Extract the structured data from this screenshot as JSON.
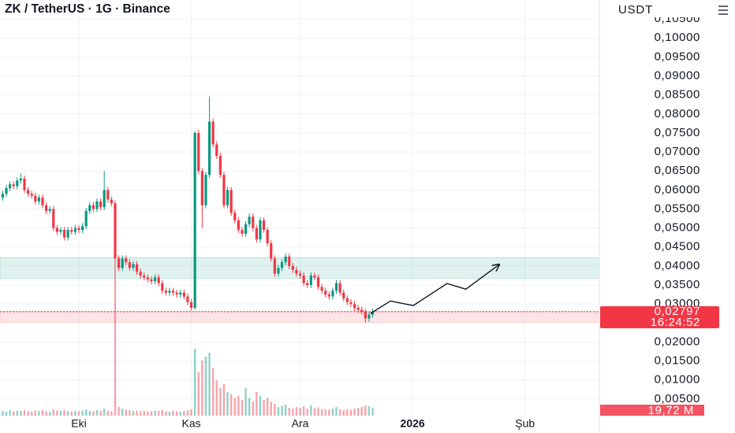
{
  "chart_data": {
    "type": "candlestick",
    "title": "ZK / TetherUS · 1G · Binance",
    "y_axis_label": "USDT",
    "up_color": "#089981",
    "down_color": "#f23645",
    "grid": true,
    "ylim": [
      0,
      0.11
    ],
    "yticks": [
      {
        "value": 0.005,
        "label": "0,00500"
      },
      {
        "value": 0.01,
        "label": "0,01000"
      },
      {
        "value": 0.015,
        "label": "0,01500"
      },
      {
        "value": 0.02,
        "label": "0,02000"
      },
      {
        "value": 0.03,
        "label": "0,03000"
      },
      {
        "value": 0.035,
        "label": "0,03500"
      },
      {
        "value": 0.04,
        "label": "0,04000"
      },
      {
        "value": 0.045,
        "label": "0,04500"
      },
      {
        "value": 0.05,
        "label": "0,05000"
      },
      {
        "value": 0.055,
        "label": "0,05500"
      },
      {
        "value": 0.06,
        "label": "0,06000"
      },
      {
        "value": 0.065,
        "label": "0,06500"
      },
      {
        "value": 0.07,
        "label": "0,07000"
      },
      {
        "value": 0.075,
        "label": "0,07500"
      },
      {
        "value": 0.08,
        "label": "0,08000"
      },
      {
        "value": 0.085,
        "label": "0,08500"
      },
      {
        "value": 0.09,
        "label": "0,09000"
      },
      {
        "value": 0.095,
        "label": "0,09500"
      },
      {
        "value": 0.1,
        "label": "0,10000"
      },
      {
        "value": 0.105,
        "label": "0,10500"
      }
    ],
    "xlim": [
      -0.74,
      164.5
    ],
    "xticks": [
      {
        "value": 21,
        "label": "Eki"
      },
      {
        "value": 52,
        "label": "Kas"
      },
      {
        "value": 82,
        "label": "Ara"
      },
      {
        "value": 113,
        "label": "2026",
        "bold": true
      },
      {
        "value": 144,
        "label": "Şub"
      }
    ],
    "open": [
      0.058,
      0.059,
      0.0605,
      0.0615,
      0.061,
      0.0625,
      0.063,
      0.06,
      0.059,
      0.0585,
      0.057,
      0.058,
      0.056,
      0.0545,
      0.055,
      0.05,
      0.049,
      0.0495,
      0.0475,
      0.0495,
      0.049,
      0.05,
      0.0495,
      0.0505,
      0.0545,
      0.056,
      0.055,
      0.057,
      0.0555,
      0.06,
      0.0575,
      0.0565,
      0.042,
      0.0395,
      0.042,
      0.041,
      0.0395,
      0.0405,
      0.0385,
      0.0375,
      0.037,
      0.0365,
      0.036,
      0.037,
      0.0355,
      0.0335,
      0.033,
      0.0335,
      0.033,
      0.0325,
      0.033,
      0.032,
      0.0305,
      0.029,
      0.075,
      0.065,
      0.056,
      0.064,
      0.078,
      0.072,
      0.069,
      0.064,
      0.056,
      0.06,
      0.054,
      0.052,
      0.0495,
      0.0485,
      0.051,
      0.053,
      0.05,
      0.047,
      0.052,
      0.0495,
      0.046,
      0.042,
      0.038,
      0.0395,
      0.041,
      0.0425,
      0.04,
      0.039,
      0.038,
      0.0375,
      0.0355,
      0.035,
      0.0375,
      0.037,
      0.0345,
      0.0335,
      0.0325,
      0.032,
      0.0335,
      0.0355,
      0.033,
      0.0315,
      0.0305,
      0.03,
      0.029,
      0.0285,
      0.028,
      0.0262,
      0.0272
    ],
    "high": [
      0.0598,
      0.0613,
      0.0623,
      0.0623,
      0.0633,
      0.0644,
      0.0638,
      0.0608,
      0.0598,
      0.0593,
      0.0588,
      0.0588,
      0.0568,
      0.0558,
      0.0558,
      0.0508,
      0.0503,
      0.0503,
      0.0503,
      0.0503,
      0.0508,
      0.0508,
      0.0513,
      0.0553,
      0.0568,
      0.0568,
      0.0578,
      0.0578,
      0.065,
      0.0608,
      0.0583,
      0.0573,
      0.0428,
      0.0428,
      0.0428,
      0.0418,
      0.0413,
      0.0413,
      0.0393,
      0.0383,
      0.0378,
      0.0373,
      0.0378,
      0.0378,
      0.0363,
      0.0343,
      0.0343,
      0.0343,
      0.0338,
      0.0338,
      0.0338,
      0.0328,
      0.0313,
      0.0755,
      0.0758,
      0.0658,
      0.0648,
      0.0846,
      0.0788,
      0.0728,
      0.0698,
      0.0648,
      0.0608,
      0.0608,
      0.0548,
      0.0528,
      0.0503,
      0.0518,
      0.0538,
      0.0538,
      0.0508,
      0.0528,
      0.0528,
      0.0503,
      0.0468,
      0.0428,
      0.0403,
      0.0418,
      0.0433,
      0.0433,
      0.0408,
      0.0398,
      0.0388,
      0.0383,
      0.0363,
      0.0383,
      0.0383,
      0.0378,
      0.0353,
      0.0343,
      0.0333,
      0.0343,
      0.0363,
      0.0363,
      0.0338,
      0.0323,
      0.0313,
      0.0308,
      0.0298,
      0.0293,
      0.0288,
      0.028,
      0.0288
    ],
    "low": [
      0.0572,
      0.0582,
      0.0597,
      0.0602,
      0.0602,
      0.0617,
      0.0592,
      0.0582,
      0.0577,
      0.0562,
      0.0562,
      0.0552,
      0.0537,
      0.0537,
      0.0492,
      0.0482,
      0.0482,
      0.0467,
      0.0467,
      0.0482,
      0.0482,
      0.0487,
      0.0487,
      0.0497,
      0.0537,
      0.0542,
      0.0542,
      0.0547,
      0.0547,
      0.0567,
      0.0557,
      0.004,
      0.0387,
      0.0387,
      0.0402,
      0.0387,
      0.0387,
      0.0377,
      0.0367,
      0.0362,
      0.0357,
      0.0352,
      0.0352,
      0.0347,
      0.0327,
      0.0322,
      0.0322,
      0.0322,
      0.0317,
      0.0317,
      0.0312,
      0.0297,
      0.0282,
      0.0285,
      0.0642,
      0.05,
      0.0552,
      0.0632,
      0.0712,
      0.0682,
      0.0632,
      0.0552,
      0.0552,
      0.0532,
      0.0512,
      0.0487,
      0.0477,
      0.0477,
      0.0502,
      0.0492,
      0.0462,
      0.0462,
      0.0487,
      0.0452,
      0.0412,
      0.0372,
      0.0372,
      0.0387,
      0.0402,
      0.0392,
      0.0382,
      0.0372,
      0.0367,
      0.0347,
      0.0342,
      0.0342,
      0.0362,
      0.0337,
      0.0327,
      0.0317,
      0.0312,
      0.0312,
      0.0327,
      0.0322,
      0.0307,
      0.0297,
      0.0292,
      0.0282,
      0.0277,
      0.0272,
      0.025,
      0.0254,
      0.0264
    ],
    "close": [
      0.059,
      0.0605,
      0.0615,
      0.061,
      0.0625,
      0.063,
      0.06,
      0.059,
      0.0585,
      0.057,
      0.058,
      0.056,
      0.0545,
      0.055,
      0.05,
      0.049,
      0.0495,
      0.0475,
      0.0495,
      0.049,
      0.05,
      0.0495,
      0.0505,
      0.0545,
      0.056,
      0.055,
      0.057,
      0.0555,
      0.06,
      0.0575,
      0.0565,
      0.042,
      0.0395,
      0.042,
      0.041,
      0.0395,
      0.0405,
      0.0385,
      0.0375,
      0.037,
      0.0365,
      0.036,
      0.037,
      0.0355,
      0.0335,
      0.033,
      0.0335,
      0.033,
      0.0325,
      0.033,
      0.032,
      0.0305,
      0.029,
      0.075,
      0.065,
      0.056,
      0.064,
      0.078,
      0.072,
      0.069,
      0.064,
      0.056,
      0.06,
      0.054,
      0.052,
      0.0495,
      0.0485,
      0.051,
      0.053,
      0.05,
      0.047,
      0.052,
      0.0495,
      0.046,
      0.042,
      0.038,
      0.0395,
      0.041,
      0.0425,
      0.04,
      0.039,
      0.038,
      0.0375,
      0.0355,
      0.035,
      0.0375,
      0.037,
      0.0345,
      0.0335,
      0.0325,
      0.032,
      0.0335,
      0.0355,
      0.033,
      0.0315,
      0.0305,
      0.03,
      0.029,
      0.0285,
      0.028,
      0.0262,
      0.0272,
      0.02797
    ],
    "last_price_label": "0,02797",
    "countdown": "16:24:52",
    "volume_ylim": [
      0,
      500
    ],
    "volume": [
      12,
      10,
      14,
      11,
      13,
      12,
      15,
      11,
      10,
      13,
      12,
      14,
      11,
      10,
      16,
      13,
      12,
      15,
      11,
      10,
      12,
      11,
      13,
      16,
      12,
      11,
      14,
      12,
      18,
      13,
      11,
      35,
      22,
      18,
      15,
      14,
      12,
      13,
      11,
      12,
      10,
      11,
      13,
      12,
      14,
      11,
      10,
      12,
      11,
      10,
      12,
      14,
      16,
      170,
      110,
      140,
      150,
      160,
      120,
      90,
      70,
      80,
      60,
      55,
      45,
      50,
      40,
      70,
      45,
      35,
      60,
      50,
      40,
      45,
      35,
      30,
      22,
      25,
      28,
      20,
      18,
      22,
      20,
      24,
      18,
      26,
      19,
      21,
      17,
      16,
      15,
      18,
      22,
      17,
      14,
      16,
      15,
      18,
      20,
      22,
      26,
      24,
      19.72
    ],
    "last_volume_label": "19,72 M",
    "zones": [
      {
        "range": [
          0.0368,
          0.0422
        ],
        "color": "rgba(8,153,129,0.13)",
        "edge": "rgba(8,153,129,0.35)"
      },
      {
        "range": [
          0.0252,
          0.0281
        ],
        "color": "rgba(242,54,69,0.13)",
        "edge": "rgba(242,54,69,0.35)"
      }
    ],
    "projection": {
      "x": [
        101.4,
        106.9,
        113.2,
        122.5,
        127.7,
        136.9
      ],
      "values": [
        0.0275,
        0.0308,
        0.0296,
        0.0354,
        0.0339,
        0.0404
      ],
      "color": "#131722"
    }
  }
}
